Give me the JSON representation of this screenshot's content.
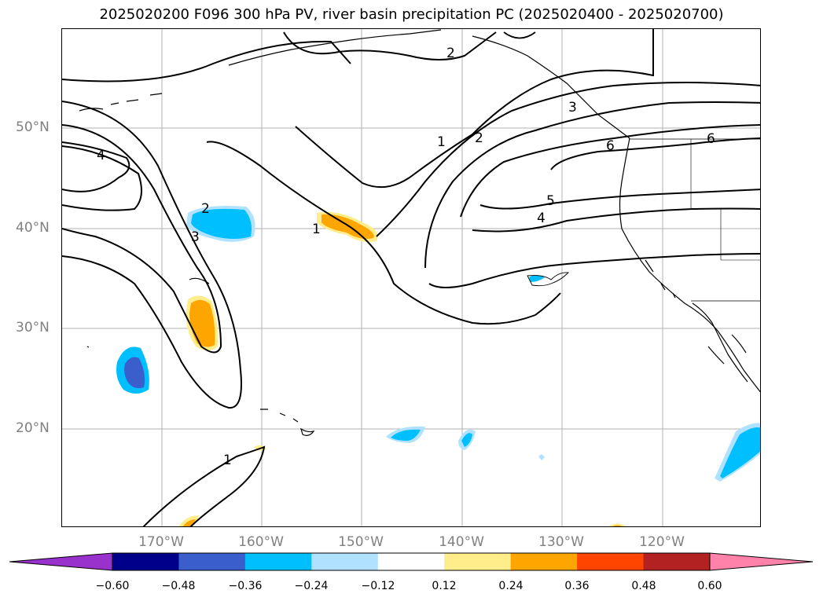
{
  "title": "2025020200 F096 300 hPa PV, river basin precipitation PC (2025020400 - 2025020700)",
  "lat_labels": [
    "50°N",
    "40°N",
    "30°N",
    "20°N"
  ],
  "lon_labels": [
    "170°W",
    "160°W",
    "150°W",
    "140°W",
    "130°W",
    "120°W"
  ],
  "contour_labels": [
    "2",
    "1",
    "2",
    "3",
    "4",
    "5",
    "6",
    "4",
    "2",
    "3",
    "1",
    "6",
    "1"
  ],
  "colorbar": {
    "tick_labels": [
      "−0.60",
      "−0.48",
      "−0.36",
      "−0.24",
      "−0.12",
      "0.12",
      "0.24",
      "0.36",
      "0.48",
      "0.60"
    ],
    "colors": [
      "#9932cc",
      "#00008b",
      "#3a5fcd",
      "#00bfff",
      "#b0e2ff",
      "#ffffff",
      "#ffec8b",
      "#ffa500",
      "#ff4500",
      "#b22222",
      "#ff82ab"
    ]
  }
}
